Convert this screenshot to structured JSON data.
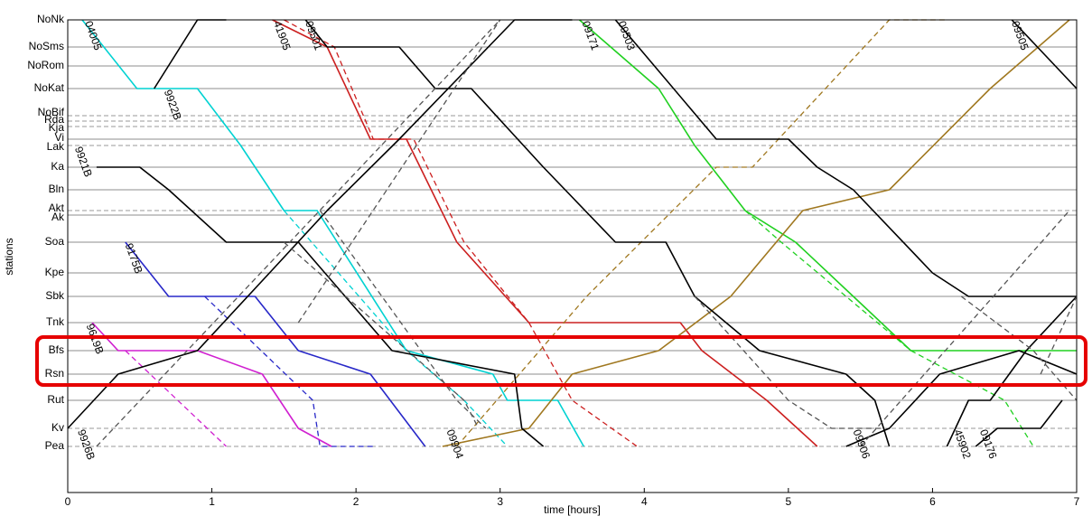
{
  "chart_data": {
    "type": "line",
    "title": "",
    "xlabel": "time [hours]",
    "ylabel": "stations",
    "xlim": [
      0,
      7
    ],
    "x_ticks": [
      "0",
      "1",
      "2",
      "3",
      "4",
      "5",
      "6",
      "7"
    ],
    "grid": "horizontal station lines",
    "stations": [
      {
        "name": "NoNk",
        "style": "dashed"
      },
      {
        "name": "NoSms",
        "style": "solid"
      },
      {
        "name": "NoRom",
        "style": "solid"
      },
      {
        "name": "NoKat",
        "style": "solid"
      },
      {
        "name": "NoBif",
        "style": "dashed"
      },
      {
        "name": "Rda",
        "style": "dashed"
      },
      {
        "name": "Kja",
        "style": "dashed"
      },
      {
        "name": "Vi",
        "style": "solid"
      },
      {
        "name": "Lak",
        "style": "dashed"
      },
      {
        "name": "Ka",
        "style": "solid"
      },
      {
        "name": "Bln",
        "style": "solid"
      },
      {
        "name": "Akt",
        "style": "dashed"
      },
      {
        "name": "Ak",
        "style": "solid"
      },
      {
        "name": "Soa",
        "style": "solid"
      },
      {
        "name": "Kpe",
        "style": "solid"
      },
      {
        "name": "Sbk",
        "style": "solid"
      },
      {
        "name": "Tnk",
        "style": "solid"
      },
      {
        "name": "Bfs",
        "style": "solid"
      },
      {
        "name": "Rsn",
        "style": "solid"
      },
      {
        "name": "Rut",
        "style": "solid"
      },
      {
        "name": "Kv",
        "style": "dashed"
      },
      {
        "name": "Pea",
        "style": "dashed"
      }
    ],
    "highlight": {
      "stations": [
        "Bfs",
        "Rsn"
      ],
      "color": "#e60000"
    },
    "series": [
      {
        "color": "#00d2d2",
        "dash": false,
        "label": "04005",
        "label_pos": [
          0.17,
          "NoNk"
        ],
        "points": [
          [
            0.1,
            "NoNk"
          ],
          [
            0.48,
            "NoKat"
          ],
          [
            0.9,
            "NoKat"
          ],
          [
            1.2,
            "Lak"
          ],
          [
            1.5,
            "Akt"
          ],
          [
            1.73,
            "Akt"
          ],
          [
            2.35,
            "Bfs"
          ],
          [
            2.95,
            "Rsn"
          ],
          [
            3.05,
            "Rut"
          ],
          [
            3.4,
            "Rut"
          ],
          [
            3.58,
            "Pea"
          ]
        ]
      },
      {
        "color": "#00d2d2",
        "dash": true,
        "label": "",
        "label_pos": null,
        "points": [
          [
            1.5,
            "Akt"
          ],
          [
            2.35,
            "Bfs"
          ],
          [
            2.75,
            "Rut"
          ],
          [
            3.05,
            "Pea"
          ]
        ]
      },
      {
        "color": "#cc2020",
        "dash": false,
        "label": "41905",
        "label_pos": [
          1.48,
          "NoNk"
        ],
        "points": [
          [
            1.42,
            "NoNk"
          ],
          [
            1.8,
            "NoSms"
          ],
          [
            2.1,
            "Vi"
          ],
          [
            2.35,
            "Vi"
          ],
          [
            2.7,
            "Soa"
          ],
          [
            3.2,
            "Tnk"
          ],
          [
            4.25,
            "Tnk"
          ],
          [
            4.4,
            "Bfs"
          ],
          [
            4.85,
            "Rut"
          ],
          [
            5.2,
            "Pea"
          ]
        ]
      },
      {
        "color": "#cc2020",
        "dash": true,
        "label": "",
        "label_pos": null,
        "points": [
          [
            1.5,
            "NoNk"
          ],
          [
            1.85,
            "NoSms"
          ],
          [
            2.12,
            "Vi"
          ],
          [
            2.4,
            "Vi"
          ],
          [
            2.75,
            "Soa"
          ],
          [
            3.2,
            "Tnk"
          ],
          [
            3.5,
            "Rut"
          ],
          [
            3.95,
            "Pea"
          ]
        ]
      },
      {
        "color": "#2828c8",
        "dash": false,
        "label": "9175B",
        "label_pos": [
          0.45,
          "Soa"
        ],
        "points": [
          [
            0.4,
            "Soa"
          ],
          [
            0.7,
            "Sbk"
          ],
          [
            1.3,
            "Sbk"
          ],
          [
            1.6,
            "Bfs"
          ],
          [
            2.1,
            "Rsn"
          ],
          [
            2.48,
            "Pea"
          ]
        ]
      },
      {
        "color": "#2828c8",
        "dash": true,
        "label": "",
        "label_pos": null,
        "points": [
          [
            0.95,
            "Sbk"
          ],
          [
            1.7,
            "Rut"
          ],
          [
            1.75,
            "Pea"
          ],
          [
            2.12,
            "Pea"
          ]
        ]
      },
      {
        "color": "#d020d0",
        "dash": false,
        "label": "9619B",
        "label_pos": [
          0.18,
          "Tnk"
        ],
        "points": [
          [
            0.17,
            "Tnk"
          ],
          [
            0.35,
            "Bfs"
          ],
          [
            0.9,
            "Bfs"
          ],
          [
            1.35,
            "Rsn"
          ],
          [
            1.6,
            "Kv"
          ],
          [
            1.83,
            "Pea"
          ]
        ]
      },
      {
        "color": "#d020d0",
        "dash": true,
        "label": "",
        "label_pos": null,
        "points": [
          [
            0.4,
            "Bfs"
          ],
          [
            1.1,
            "Pea"
          ]
        ]
      },
      {
        "color": "#20d020",
        "dash": false,
        "label": "09171",
        "label_pos": [
          3.62,
          "NoNk"
        ],
        "points": [
          [
            3.55,
            "NoNk"
          ],
          [
            4.1,
            "NoKat"
          ],
          [
            4.35,
            "Lak"
          ],
          [
            4.7,
            "Akt"
          ],
          [
            5.05,
            "Soa"
          ],
          [
            5.45,
            "Sbk"
          ],
          [
            5.85,
            "Bfs"
          ],
          [
            7.0,
            "Bfs"
          ]
        ]
      },
      {
        "color": "#20d020",
        "dash": true,
        "label": "",
        "label_pos": null,
        "points": [
          [
            4.7,
            "Akt"
          ],
          [
            4.95,
            "Soa"
          ],
          [
            5.85,
            "Bfs"
          ],
          [
            6.5,
            "Rut"
          ],
          [
            6.7,
            "Pea"
          ]
        ]
      },
      {
        "color": "#a07820",
        "dash": false,
        "label": "09904",
        "label_pos": [
          2.68,
          "Kv"
        ],
        "points": [
          [
            2.6,
            "Pea"
          ],
          [
            3.2,
            "Kv"
          ],
          [
            3.5,
            "Rsn"
          ],
          [
            4.1,
            "Bfs"
          ],
          [
            4.6,
            "Sbk"
          ],
          [
            5.1,
            "Akt"
          ],
          [
            5.7,
            "Bln"
          ],
          [
            6.4,
            "NoKat"
          ],
          [
            6.95,
            "NoNk"
          ]
        ]
      },
      {
        "color": "#a07820",
        "dash": true,
        "label": "",
        "label_pos": null,
        "points": [
          [
            2.7,
            "Pea"
          ],
          [
            3.6,
            "Sbk"
          ],
          [
            4.5,
            "Ka"
          ],
          [
            4.75,
            "Ka"
          ],
          [
            5.7,
            "NoNk"
          ],
          [
            6.1,
            "NoNk"
          ]
        ]
      },
      {
        "color": "#000000",
        "dash": false,
        "label": "9922B",
        "label_pos": [
          0.72,
          "NoKat"
        ],
        "points": [
          [
            0.6,
            "NoKat"
          ],
          [
            0.9,
            "NoNk"
          ],
          [
            1.1,
            "NoNk"
          ]
        ]
      },
      {
        "color": "#000000",
        "dash": false,
        "label": "9921B",
        "label_pos": [
          0.1,
          "Lak"
        ],
        "points": [
          [
            0.2,
            "Ka"
          ],
          [
            0.5,
            "Ka"
          ],
          [
            0.7,
            "Bln"
          ],
          [
            1.1,
            "Soa"
          ],
          [
            1.6,
            "Soa"
          ],
          [
            2.25,
            "Bfs"
          ],
          [
            3.1,
            "Rsn"
          ],
          [
            3.15,
            "Kv"
          ],
          [
            3.3,
            "Pea"
          ]
        ]
      },
      {
        "color": "#000000",
        "dash": false,
        "label": "09501",
        "label_pos": [
          1.7,
          "NoNk"
        ],
        "points": [
          [
            1.65,
            "NoNk"
          ],
          [
            1.8,
            "NoSms"
          ],
          [
            2.3,
            "NoSms"
          ],
          [
            2.55,
            "NoKat"
          ],
          [
            2.8,
            "NoKat"
          ],
          [
            3.3,
            "Ka"
          ],
          [
            3.8,
            "Soa"
          ],
          [
            4.15,
            "Soa"
          ],
          [
            4.35,
            "Sbk"
          ],
          [
            4.8,
            "Bfs"
          ],
          [
            5.4,
            "Rsn"
          ],
          [
            5.6,
            "Rut"
          ],
          [
            5.7,
            "Pea"
          ]
        ]
      },
      {
        "color": "#000000",
        "dash": false,
        "label": "09503",
        "label_pos": [
          3.87,
          "NoNk"
        ],
        "points": [
          [
            3.8,
            "NoNk"
          ],
          [
            4.5,
            "Vi"
          ],
          [
            5.0,
            "Vi"
          ],
          [
            5.2,
            "Ka"
          ],
          [
            5.45,
            "Bln"
          ],
          [
            6.0,
            "Kpe"
          ],
          [
            6.25,
            "Sbk"
          ],
          [
            6.95,
            "Sbk"
          ],
          [
            7.0,
            "Sbk"
          ]
        ]
      },
      {
        "color": "#000000",
        "dash": false,
        "label": "09505",
        "label_pos": [
          6.6,
          "NoNk"
        ],
        "points": [
          [
            6.55,
            "NoNk"
          ],
          [
            7.0,
            "NoKat"
          ]
        ]
      },
      {
        "color": "#000000",
        "dash": false,
        "label": "9926B",
        "label_pos": [
          0.12,
          "Kv"
        ],
        "points": [
          [
            0.0,
            "Kv"
          ],
          [
            0.35,
            "Rsn"
          ],
          [
            0.9,
            "Bfs"
          ],
          [
            1.4,
            "Kpe"
          ],
          [
            1.8,
            "Akt"
          ],
          [
            2.3,
            "Vi"
          ],
          [
            3.1,
            "NoNk"
          ],
          [
            3.5,
            "NoNk"
          ]
        ]
      },
      {
        "color": "#000000",
        "dash": false,
        "label": "09906",
        "label_pos": [
          5.5,
          "Kv"
        ],
        "points": [
          [
            5.4,
            "Pea"
          ],
          [
            5.7,
            "Kv"
          ],
          [
            6.05,
            "Rsn"
          ],
          [
            6.6,
            "Bfs"
          ],
          [
            7.0,
            "Rsn"
          ]
        ]
      },
      {
        "color": "#000000",
        "dash": false,
        "label": "45902",
        "label_pos": [
          6.2,
          "Kv"
        ],
        "points": [
          [
            6.1,
            "Pea"
          ],
          [
            6.25,
            "Rut"
          ],
          [
            6.4,
            "Rut"
          ],
          [
            6.65,
            "Bfs"
          ],
          [
            7.0,
            "Sbk"
          ]
        ]
      },
      {
        "color": "#000000",
        "dash": false,
        "label": "09176",
        "label_pos": [
          6.38,
          "Kv"
        ],
        "points": [
          [
            6.3,
            "Pea"
          ],
          [
            6.45,
            "Kv"
          ],
          [
            6.75,
            "Kv"
          ],
          [
            6.9,
            "Rut"
          ]
        ]
      },
      {
        "color": "#555555",
        "dash": true,
        "label": "",
        "label_pos": null,
        "points": [
          [
            0.2,
            "Pea"
          ],
          [
            3.0,
            "NoNk"
          ]
        ]
      },
      {
        "color": "#555555",
        "dash": true,
        "label": "",
        "label_pos": null,
        "points": [
          [
            1.6,
            "Tnk"
          ],
          [
            3.0,
            "NoNk"
          ]
        ]
      },
      {
        "color": "#555555",
        "dash": true,
        "label": "",
        "label_pos": null,
        "points": [
          [
            1.5,
            "Soa"
          ],
          [
            2.75,
            "Rut"
          ],
          [
            2.85,
            "Kv"
          ]
        ]
      },
      {
        "color": "#555555",
        "dash": true,
        "label": "",
        "label_pos": null,
        "points": [
          [
            1.75,
            "Akt"
          ],
          [
            2.7,
            "Rut"
          ],
          [
            2.9,
            "Kv"
          ]
        ]
      },
      {
        "color": "#555555",
        "dash": true,
        "label": "",
        "label_pos": null,
        "points": [
          [
            4.35,
            "Sbk"
          ],
          [
            5.0,
            "Rut"
          ],
          [
            5.3,
            "Kv"
          ],
          [
            5.65,
            "Kv"
          ]
        ]
      },
      {
        "color": "#555555",
        "dash": true,
        "label": "",
        "label_pos": null,
        "points": [
          [
            5.5,
            "Pea"
          ],
          [
            6.95,
            "Akt"
          ]
        ]
      },
      {
        "color": "#555555",
        "dash": true,
        "label": "",
        "label_pos": null,
        "points": [
          [
            6.2,
            "Sbk"
          ],
          [
            6.7,
            "Bfs"
          ],
          [
            7.0,
            "Rut"
          ]
        ]
      },
      {
        "color": "#555555",
        "dash": true,
        "label": "",
        "label_pos": null,
        "points": [
          [
            6.75,
            "Rsn"
          ],
          [
            7.0,
            "Sbk"
          ]
        ]
      }
    ]
  }
}
